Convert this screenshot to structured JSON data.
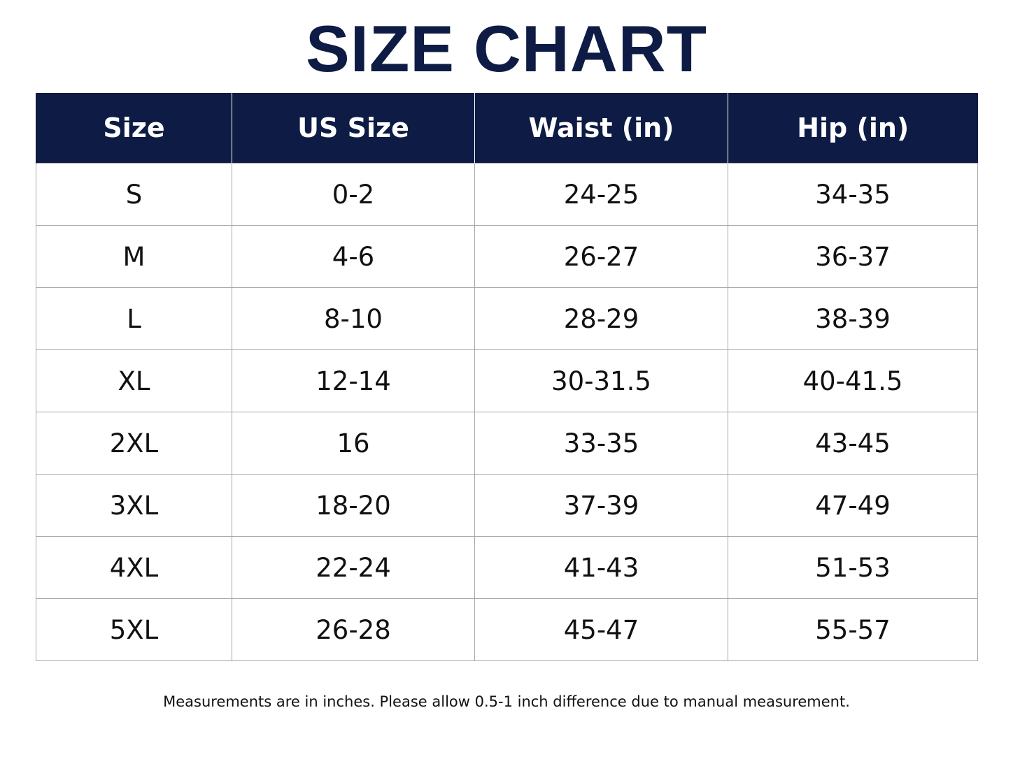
{
  "title": "SIZE CHART",
  "colors": {
    "header_bg": "#0d1b45",
    "title": "#0d1b45",
    "grid": "#a8a8a8"
  },
  "table": {
    "headers": [
      "Size",
      "US Size",
      "Waist (in)",
      "Hip (in)"
    ],
    "rows": [
      [
        "S",
        "0-2",
        "24-25",
        "34-35"
      ],
      [
        "M",
        "4-6",
        "26-27",
        "36-37"
      ],
      [
        "L",
        "8-10",
        "28-29",
        "38-39"
      ],
      [
        "XL",
        "12-14",
        "30-31.5",
        "40-41.5"
      ],
      [
        "2XL",
        "16",
        "33-35",
        "43-45"
      ],
      [
        "3XL",
        "18-20",
        "37-39",
        "47-49"
      ],
      [
        "4XL",
        "22-24",
        "41-43",
        "51-53"
      ],
      [
        "5XL",
        "26-28",
        "45-47",
        "55-57"
      ]
    ]
  },
  "footnote": "Measurements are in inches. Please allow 0.5-1 inch difference due to manual measurement."
}
